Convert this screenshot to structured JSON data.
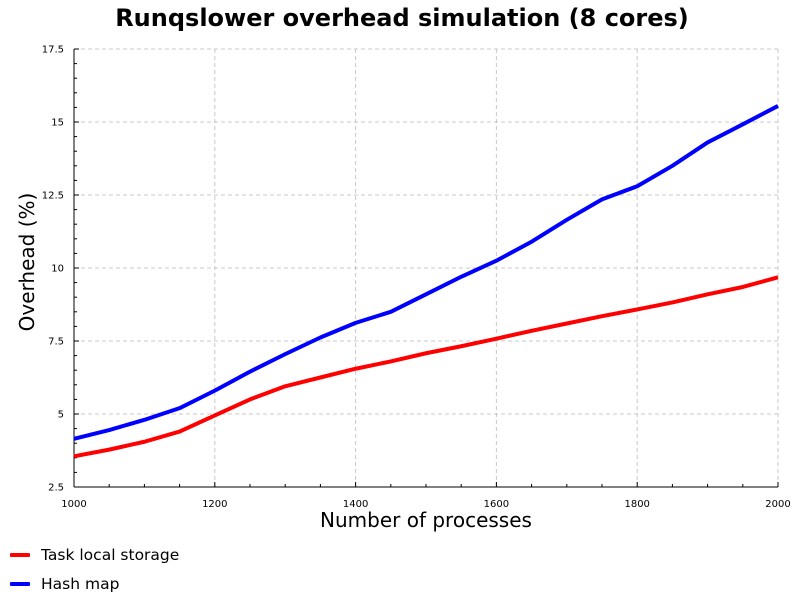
{
  "chart_data": {
    "type": "line",
    "title": "Runqslower overhead simulation (8 cores)",
    "xlabel": "Number of processes",
    "ylabel": "Overhead (%)",
    "xlim": [
      1000,
      2000
    ],
    "ylim": [
      2.5,
      17.5
    ],
    "x_ticks": [
      "1000",
      "1200",
      "1400",
      "1600",
      "1800",
      "2000"
    ],
    "y_ticks": [
      "2.5",
      "5",
      "7.5",
      "10",
      "12.5",
      "15",
      "17.5"
    ],
    "grid": true,
    "legend_position": "bottom-left",
    "x": [
      1000,
      1050,
      1100,
      1150,
      1200,
      1250,
      1300,
      1350,
      1400,
      1450,
      1500,
      1550,
      1600,
      1650,
      1700,
      1750,
      1800,
      1850,
      1900,
      1950,
      2000
    ],
    "series": [
      {
        "name": "Task local storage",
        "color": "#ff0000",
        "values": [
          3.55,
          3.78,
          4.05,
          4.4,
          4.95,
          5.5,
          5.95,
          6.25,
          6.55,
          6.8,
          7.08,
          7.32,
          7.58,
          7.85,
          8.1,
          8.35,
          8.58,
          8.82,
          9.1,
          9.35,
          9.68
        ]
      },
      {
        "name": "Hash map",
        "color": "#0000ff",
        "values": [
          4.15,
          4.45,
          4.8,
          5.2,
          5.8,
          6.45,
          7.05,
          7.62,
          8.12,
          8.5,
          9.1,
          9.7,
          10.25,
          10.9,
          11.65,
          12.35,
          12.8,
          13.5,
          14.3,
          14.92,
          15.55
        ]
      }
    ]
  }
}
